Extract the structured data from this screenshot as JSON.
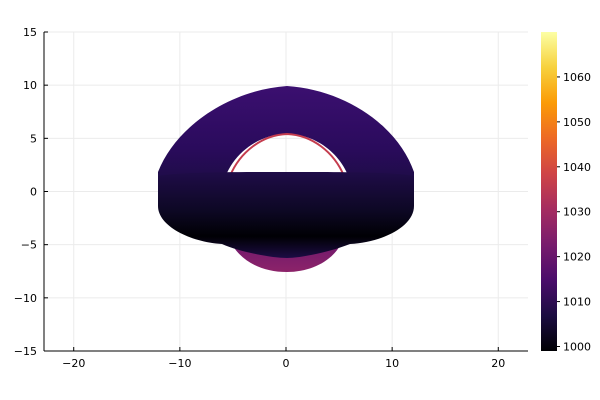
{
  "chart_data": {
    "type": "heatmap",
    "title": "",
    "xlabel": "",
    "ylabel": "",
    "xlim": [
      -22.8,
      22.8
    ],
    "ylim": [
      -15,
      15
    ],
    "x_ticks": [
      {
        "value": -20,
        "label": "−20"
      },
      {
        "value": -10,
        "label": "−10"
      },
      {
        "value": 0,
        "label": "0"
      },
      {
        "value": 10,
        "label": "10"
      },
      {
        "value": 20,
        "label": "20"
      }
    ],
    "y_ticks": [
      {
        "value": -15,
        "label": "−15"
      },
      {
        "value": -10,
        "label": "−10"
      },
      {
        "value": -5,
        "label": "−5"
      },
      {
        "value": 0,
        "label": "0"
      },
      {
        "value": 5,
        "label": "5"
      },
      {
        "value": 10,
        "label": "10"
      },
      {
        "value": 15,
        "label": "15"
      }
    ],
    "grid": true,
    "legend": "none",
    "colorbar": {
      "range": [
        999,
        1070
      ],
      "colormap": "inferno",
      "ticks": [
        {
          "value": 1000,
          "label": "1000"
        },
        {
          "value": 1010,
          "label": "1010"
        },
        {
          "value": 1020,
          "label": "1020"
        },
        {
          "value": 1030,
          "label": "1030"
        },
        {
          "value": 1040,
          "label": "1040"
        },
        {
          "value": 1050,
          "label": "1050"
        },
        {
          "value": 1060,
          "label": "1060"
        }
      ]
    },
    "regions": [
      {
        "name": "lower-lensed-image",
        "x_range": [
          -5.5,
          5.5
        ],
        "y_range": [
          -7.5,
          -4.2
        ],
        "value": 1023
      },
      {
        "name": "upper-disk-back",
        "x_range": [
          -12,
          12
        ],
        "y_range": [
          1.0,
          9.8
        ],
        "value": 1015
      },
      {
        "name": "disk-front",
        "x_range": [
          -12,
          12
        ],
        "y_range": [
          -5.3,
          1.6
        ],
        "value": 1004
      },
      {
        "name": "photon-ring",
        "x_range": [
          -5.3,
          5.3
        ],
        "y_range": [
          1.4,
          5.4
        ],
        "value": 1034
      }
    ],
    "colors": {
      "axis": "#000000",
      "grid": "#ebebeb"
    }
  }
}
